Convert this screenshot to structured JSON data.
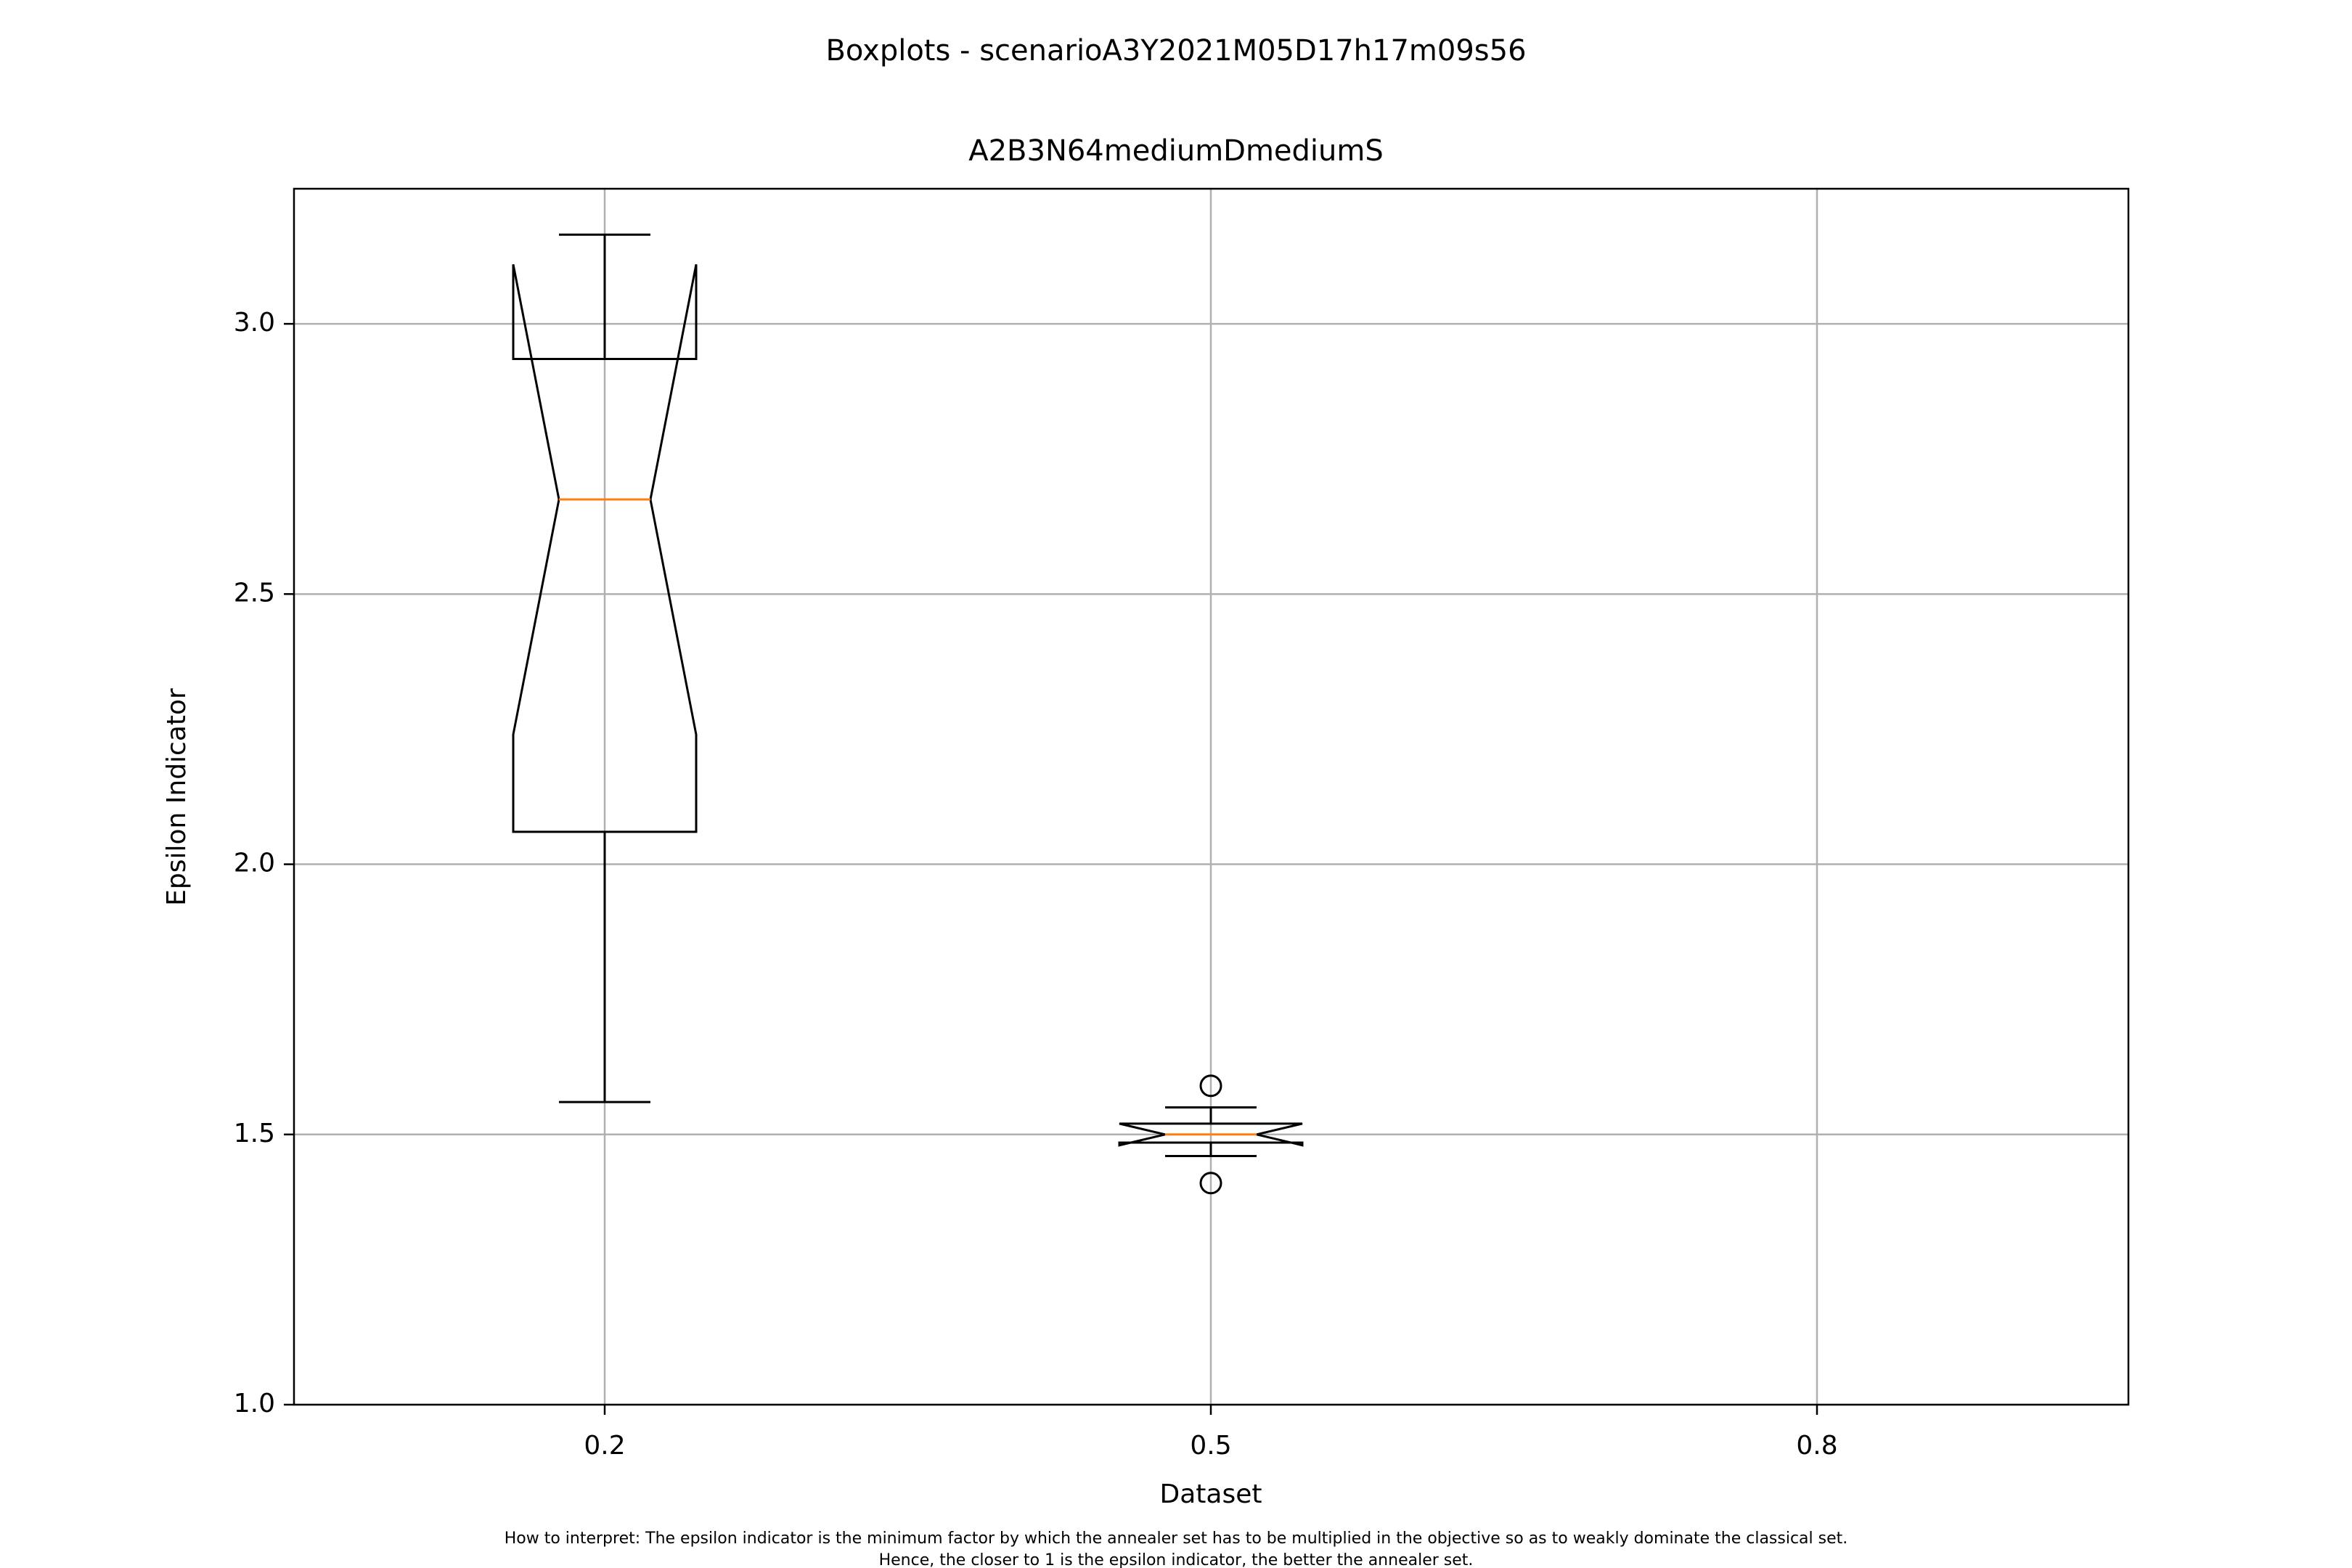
{
  "chart_data": {
    "type": "boxplot",
    "suptitle": "Boxplots - scenarioA3Y2021M05D17h17m09s56",
    "title": "A2B3N64mediumDmediumS",
    "xlabel": "Dataset",
    "ylabel": "Epsilon Indicator",
    "categories": [
      "0.2",
      "0.5",
      "0.8"
    ],
    "ylim": [
      1.0,
      3.25
    ],
    "yticks": [
      1.0,
      1.5,
      2.0,
      2.5,
      3.0
    ],
    "ytick_labels": [
      "1.0",
      "1.5",
      "2.0",
      "2.5",
      "3.0"
    ],
    "grid": true,
    "notched": true,
    "boxes": [
      {
        "category": "0.2",
        "whisker_low": 1.56,
        "q1": 2.06,
        "median": 2.675,
        "q3": 2.935,
        "whisker_high": 3.165,
        "notch_low": 2.24,
        "notch_high": 3.11,
        "outliers": []
      },
      {
        "category": "0.5",
        "whisker_low": 1.46,
        "q1": 1.485,
        "median": 1.5,
        "q3": 1.52,
        "whisker_high": 1.55,
        "notch_low": 1.48,
        "notch_high": 1.52,
        "outliers": [
          1.59,
          1.41
        ]
      },
      {
        "category": "0.8",
        "empty": true
      }
    ],
    "colors": {
      "box": "#000000",
      "median": "#ff7f0e",
      "grid": "#b0b0b0"
    }
  },
  "footnote": {
    "line1": "How to interpret: The epsilon indicator is the minimum factor by which the annealer set has to be multiplied in the objective so as to weakly dominate the classical set.",
    "line2": "Hence, the closer to 1 is the epsilon indicator, the better the annealer set."
  }
}
